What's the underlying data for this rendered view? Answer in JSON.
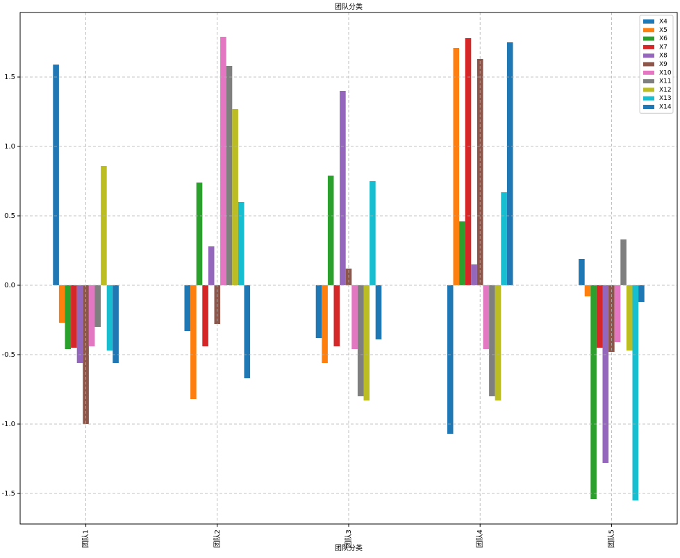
{
  "chart_data": {
    "type": "bar",
    "title": "团队分类",
    "x_label": "团队分类",
    "categories": [
      "团队1",
      "团队2",
      "团队3",
      "团队4",
      "团队5"
    ],
    "series": [
      {
        "name": "X4",
        "color": "#1f77b4",
        "values": [
          1.59,
          -0.33,
          -0.38,
          -1.07,
          0.19
        ]
      },
      {
        "name": "X5",
        "color": "#ff7f0e",
        "values": [
          -0.27,
          -0.82,
          -0.56,
          1.71,
          -0.08
        ]
      },
      {
        "name": "X6",
        "color": "#2ca02c",
        "values": [
          -0.46,
          0.74,
          0.79,
          0.46,
          -1.54
        ]
      },
      {
        "name": "X7",
        "color": "#d62728",
        "values": [
          -0.45,
          -0.44,
          -0.44,
          1.78,
          -0.45
        ]
      },
      {
        "name": "X8",
        "color": "#9467bd",
        "values": [
          -0.56,
          0.28,
          1.4,
          0.15,
          -1.28
        ]
      },
      {
        "name": "X9",
        "color": "#8c564b",
        "values": [
          -1.0,
          -0.28,
          0.12,
          1.63,
          -0.48
        ]
      },
      {
        "name": "X10",
        "color": "#e377c2",
        "values": [
          -0.44,
          1.79,
          -0.46,
          -0.46,
          -0.41
        ]
      },
      {
        "name": "X11",
        "color": "#7f7f7f",
        "values": [
          -0.3,
          1.58,
          -0.8,
          -0.8,
          0.33
        ]
      },
      {
        "name": "X12",
        "color": "#bcbd22",
        "values": [
          0.86,
          1.27,
          -0.83,
          -0.83,
          -0.47
        ]
      },
      {
        "name": "X13",
        "color": "#17becf",
        "values": [
          -0.47,
          0.6,
          0.75,
          0.67,
          -1.55
        ]
      },
      {
        "name": "X14",
        "color": "#1f77b4",
        "values": [
          -0.56,
          -0.67,
          -0.39,
          1.75,
          -0.12
        ]
      }
    ],
    "ylim": [
      -1.72,
      1.965
    ],
    "yticks": [
      -1.5,
      {
        "value": -1.0,
        "label": "-1.0"
      },
      -0.5,
      {
        "value": 0.0,
        "label": "0.0"
      },
      0.5,
      {
        "value": 1.0,
        "label": "1.0"
      },
      1.5
    ],
    "grid": true,
    "legend": "upper right"
  }
}
